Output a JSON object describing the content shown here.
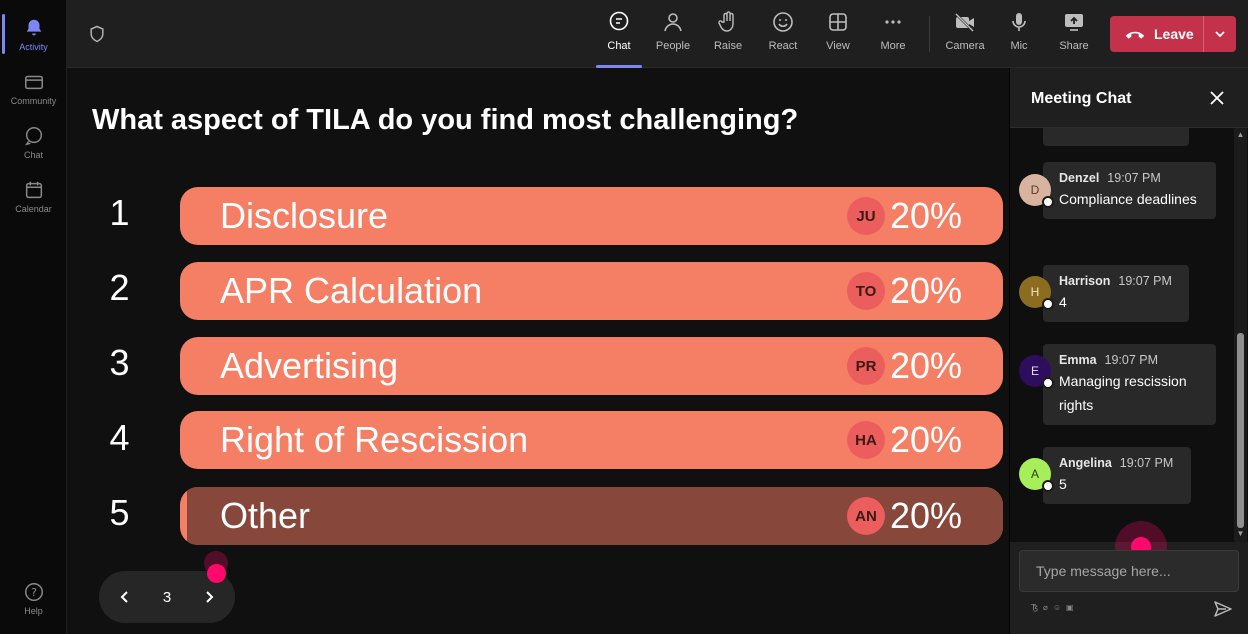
{
  "rail": {
    "items": [
      {
        "label": "Activity",
        "icon": "bell-icon",
        "active": true
      },
      {
        "label": "Community",
        "icon": "community-icon",
        "active": false
      },
      {
        "label": "Chat",
        "icon": "chat-icon",
        "active": false
      },
      {
        "label": "Calendar",
        "icon": "calendar-icon",
        "active": false
      }
    ],
    "help": {
      "label": "Help",
      "icon": "help-icon"
    }
  },
  "toolbar": {
    "chat": "Chat",
    "people": "People",
    "raise": "Raise",
    "react": "React",
    "view": "View",
    "more": "More",
    "camera": "Camera",
    "mic": "Mic",
    "share": "Share",
    "leave": "Leave"
  },
  "poll": {
    "question": "What aspect of TILA do you find most challenging?",
    "options": [
      {
        "number": "1",
        "label": "Disclosure",
        "initials": "JU",
        "percent": "20%"
      },
      {
        "number": "2",
        "label": "APR Calculation",
        "initials": "TO",
        "percent": "20%"
      },
      {
        "number": "3",
        "label": "Advertising",
        "initials": "PR",
        "percent": "20%"
      },
      {
        "number": "4",
        "label": "Right of Rescission",
        "initials": "HA",
        "percent": "20%"
      },
      {
        "number": "5",
        "label": "Other",
        "initials": "AN",
        "percent": "20%"
      }
    ],
    "page": "3"
  },
  "chat": {
    "title": "Meeting Chat",
    "messages": [
      {
        "initial": "D",
        "author": "Denzel",
        "time": "19:07 PM",
        "text": "Compliance deadlines",
        "avatar_color": "#d8b3a0"
      },
      {
        "initial": "H",
        "author": "Harrison",
        "time": "19:07 PM",
        "text": "4",
        "avatar_color": "#8c6d1f"
      },
      {
        "initial": "E",
        "author": "Emma",
        "time": "19:07 PM",
        "text": "Managing rescission rights",
        "avatar_color": "#2d0d5e"
      },
      {
        "initial": "A",
        "author": "Angelina",
        "time": "19:07 PM",
        "text": "5",
        "avatar_color": "#a6ee5a"
      }
    ],
    "compose_placeholder": "Type message here..."
  },
  "colors": {
    "accent": "#7f85f5",
    "bar": "#f57f65",
    "bar_dark": "#87473a",
    "leave": "#c4314b",
    "cursor_dot": "#ff0a6c"
  }
}
